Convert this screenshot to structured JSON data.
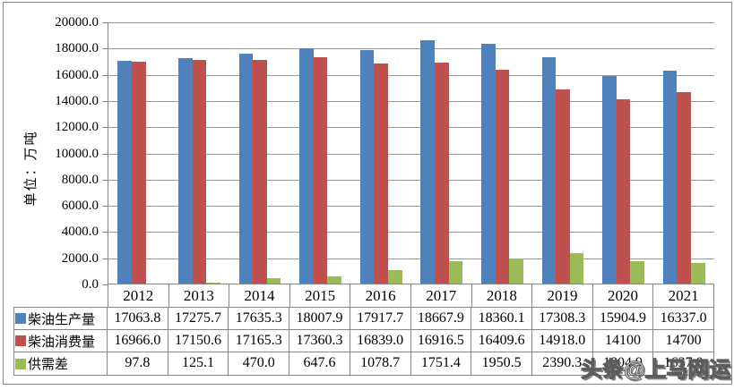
{
  "chart_data": {
    "type": "bar",
    "title": "",
    "ylabel": "单位：万吨",
    "xlabel": "",
    "ylim": [
      0,
      20000
    ],
    "ytick_step": 2000,
    "yticks": [
      "20000.0",
      "18000.0",
      "16000.0",
      "14000.0",
      "12000.0",
      "10000.0",
      "8000.0",
      "6000.0",
      "4000.0",
      "2000.0",
      "0.0"
    ],
    "grid": true,
    "legend_position": "table-left",
    "categories": [
      "2012",
      "2013",
      "2014",
      "2015",
      "2016",
      "2017",
      "2018",
      "2019",
      "2020",
      "2021"
    ],
    "series": [
      {
        "name": "柴油生产量",
        "color": "#4F81BD",
        "values": [
          17063.8,
          17275.7,
          17635.3,
          18007.9,
          17917.7,
          18667.9,
          18360.1,
          17308.3,
          15904.9,
          16337.0
        ]
      },
      {
        "name": "柴油消费量",
        "color": "#C0504D",
        "values": [
          16966.0,
          17150.6,
          17165.3,
          17360.3,
          16839.0,
          16916.5,
          16409.6,
          14918.0,
          14100,
          14700
        ]
      },
      {
        "name": "供需差",
        "color": "#9BBB59",
        "values": [
          97.8,
          125.1,
          470.0,
          647.6,
          1078.7,
          1751.4,
          1950.5,
          2390.3,
          1804.9,
          1637.0
        ]
      }
    ]
  },
  "table": {
    "rows": [
      {
        "label": "柴油生产量",
        "swatch_color": "#4F81BD",
        "cells": [
          "17063.8",
          "17275.7",
          "17635.3",
          "18007.9",
          "17917.7",
          "18667.9",
          "18360.1",
          "17308.3",
          "15904.9",
          "16337.0"
        ]
      },
      {
        "label": "柴油消费量",
        "swatch_color": "#C0504D",
        "cells": [
          "16966.0",
          "17150.6",
          "17165.3",
          "17360.3",
          "16839.0",
          "16916.5",
          "16409.6",
          "14918.0",
          "14100",
          "14700"
        ]
      },
      {
        "label": "供需差",
        "swatch_color": "#9BBB59",
        "cells": [
          "97.8",
          "125.1",
          "470.0",
          "647.6",
          "1078.7",
          "1751.4",
          "1950.5",
          "2390.3",
          "1804.9",
          "1637.0"
        ]
      }
    ]
  },
  "watermark": "头条@上马网运",
  "colors": {
    "production_blue": "#4F81BD",
    "consumption_red": "#C0504D",
    "gap_green": "#9BBB59",
    "gridline_gray": "#9a9a9a",
    "border_gray": "#878787"
  }
}
